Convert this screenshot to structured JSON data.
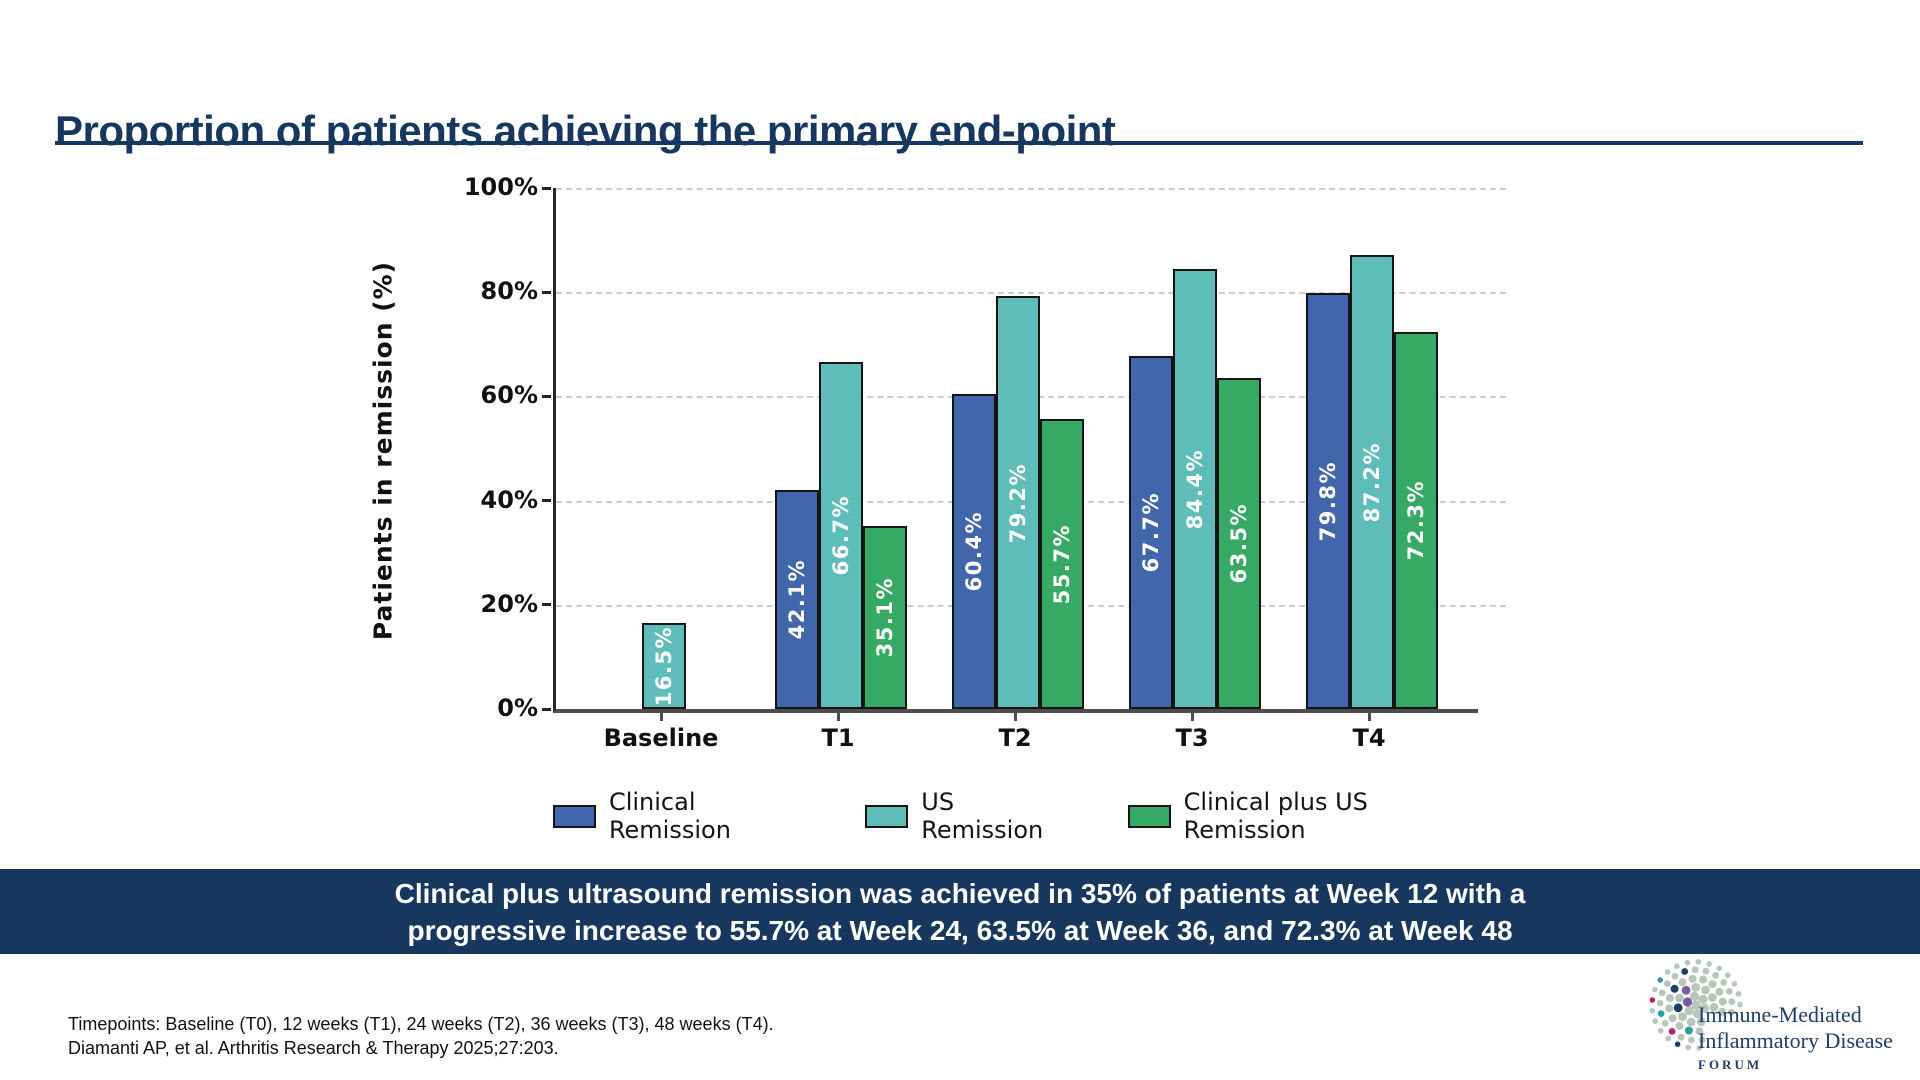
{
  "title": "Proportion of patients achieving the primary end-point",
  "theme": {
    "navy": "#17375e",
    "axis_color": "#4d4d4d",
    "spine_color": "#262626",
    "grid_color": "#cccccc",
    "bar_border": "#141414",
    "text_color": "#111111"
  },
  "chart_data": {
    "type": "bar",
    "title": "",
    "categories": [
      "Baseline",
      "T1",
      "T2",
      "T3",
      "T4"
    ],
    "series": [
      {
        "name": "Clinical Remission",
        "color": "#4166ab",
        "values": [
          null,
          42.1,
          60.4,
          67.7,
          79.8
        ]
      },
      {
        "name": "US Remission",
        "color": "#5fbdb9",
        "values": [
          16.5,
          66.7,
          79.2,
          84.4,
          87.2
        ]
      },
      {
        "name": "Clinical plus US Remission",
        "color": "#36a965",
        "values": [
          null,
          35.1,
          55.7,
          63.5,
          72.3
        ]
      }
    ],
    "xlabel": "",
    "ylabel": "Patients in remission (%)",
    "ylim": [
      0,
      100
    ],
    "ytick_labels": [
      "0%",
      "20%",
      "40%",
      "60%",
      "80%",
      "100%"
    ],
    "grid": "horizontal-dashed",
    "legend_position": "bottom",
    "bar_value_labels": [
      "16.5%",
      "42.1%",
      "66.7%",
      "35.1%",
      "60.4%",
      "79.2%",
      "55.7%",
      "67.7%",
      "84.4%",
      "63.5%",
      "79.8%",
      "87.2%",
      "72.3%"
    ]
  },
  "banner": {
    "line1": "Clinical plus ultrasound remission was achieved in 35% of patients at Week 12 with a",
    "line2": "progressive increase to 55.7% at Week 24, 63.5% at Week 36, and 72.3% at Week 48"
  },
  "footnotes": {
    "line1": "Timepoints: Baseline (T0), 12 weeks (T1), 24 weeks (T2), 36 weeks (T3), 48 weeks (T4).",
    "line2": "Diamanti AP, et al. Arthritis Research & Therapy 2025;27:203."
  },
  "logo": {
    "line1": "Immune-Mediated",
    "line2": "Inflammatory Disease",
    "line3": "FORUM",
    "text_color": "#1c3f6b",
    "dot_base_color": "#b7c6ba",
    "dot_accent_colors": [
      "#7e57a5",
      "#2d9daa",
      "#1d3d6d",
      "#b72071"
    ]
  }
}
